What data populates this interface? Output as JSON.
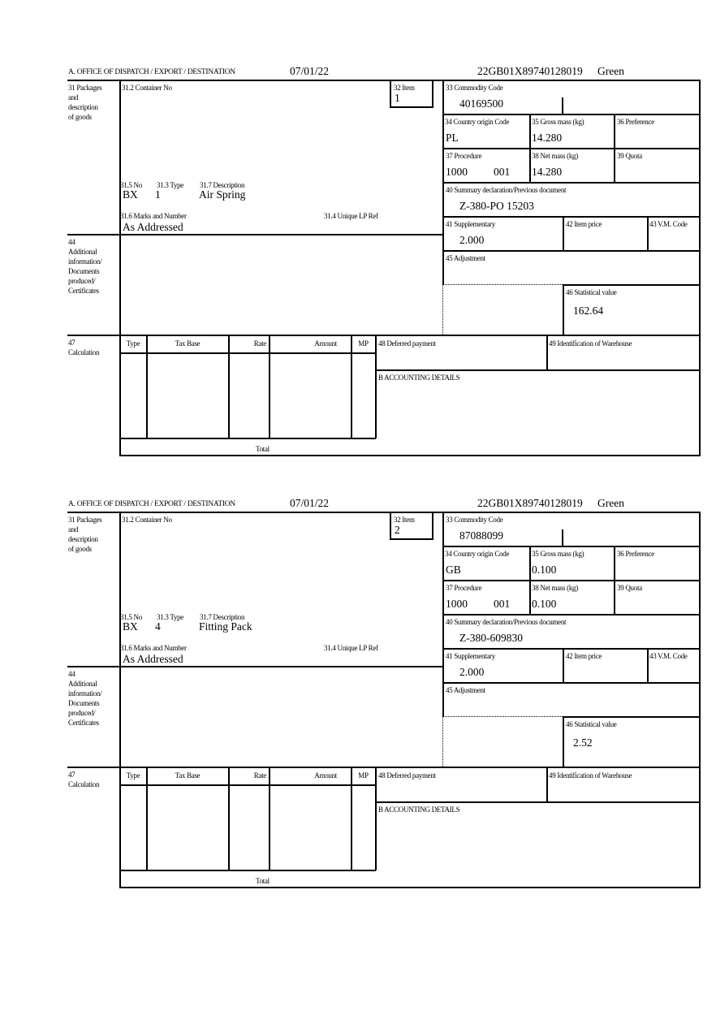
{
  "header_label": "A.  OFFICE OF DISPATCH / EXPORT / DESTINATION",
  "labels": {
    "packages": "31 Packages\nand\ndescription\nof goods",
    "container_no": "31.2 Container No",
    "item": "32 Item",
    "no": "31.5 No",
    "type": "31.3 Type",
    "description": "31.7 Description",
    "marks": "31.6 Marks and Number",
    "unique_ref": "31.4 Unique LP Ref",
    "additional": "44\nAdditional\ninformation/\nDocuments\nproduced/\nCertificates",
    "commodity": "33 Commodity Code",
    "country": "34 Country origin Code",
    "gross": "35 Gross mass (kg)",
    "preference": "36 Preference",
    "procedure": "37 Procedure",
    "net": "38 Net mass (kg)",
    "quota": "39 Quota",
    "summary": "40 Summary declaration/Previous document",
    "supplementary": "41 Supplementary",
    "item_price": "42 Item price",
    "vm_code": "43 V.M. Code",
    "adjustment": "45 Adjustment",
    "statistical": "46 Statistical value",
    "calculation": "47\nCalculation",
    "calc_type": "Type",
    "tax_base": "Tax Base",
    "rate": "Rate",
    "amount": "Amount",
    "mp": "MP",
    "deferred": "48 Deferred payment",
    "warehouse": "49 Identification of Warehouse",
    "accounting": "B ACCOUNTING DETAILS",
    "total": "Total"
  },
  "items": [
    {
      "date": "07/01/22",
      "reference": "22GB01X89740128019",
      "channel": "Green",
      "item_no": "1",
      "pkg_kind": "BX",
      "pkg_count": "1",
      "description": "Air Spring",
      "marks": "As Addressed",
      "commodity_code": "40169500",
      "country_origin": "PL",
      "gross_mass": "14.280",
      "procedure": "1000",
      "procedure_add": "001",
      "net_mass": "14.280",
      "previous_document": "Z-380-PO 15203",
      "supplementary": "2.000",
      "statistical_value": "162.64"
    },
    {
      "date": "07/01/22",
      "reference": "22GB01X89740128019",
      "channel": "Green",
      "item_no": "2",
      "pkg_kind": "BX",
      "pkg_count": "4",
      "description": "Fitting Pack",
      "marks": "As Addressed",
      "commodity_code": "87088099",
      "country_origin": "GB",
      "gross_mass": "0.100",
      "procedure": "1000",
      "procedure_add": "001",
      "net_mass": "0.100",
      "previous_document": "Z-380-609830",
      "supplementary": "2.000",
      "statistical_value": "2.52"
    }
  ]
}
